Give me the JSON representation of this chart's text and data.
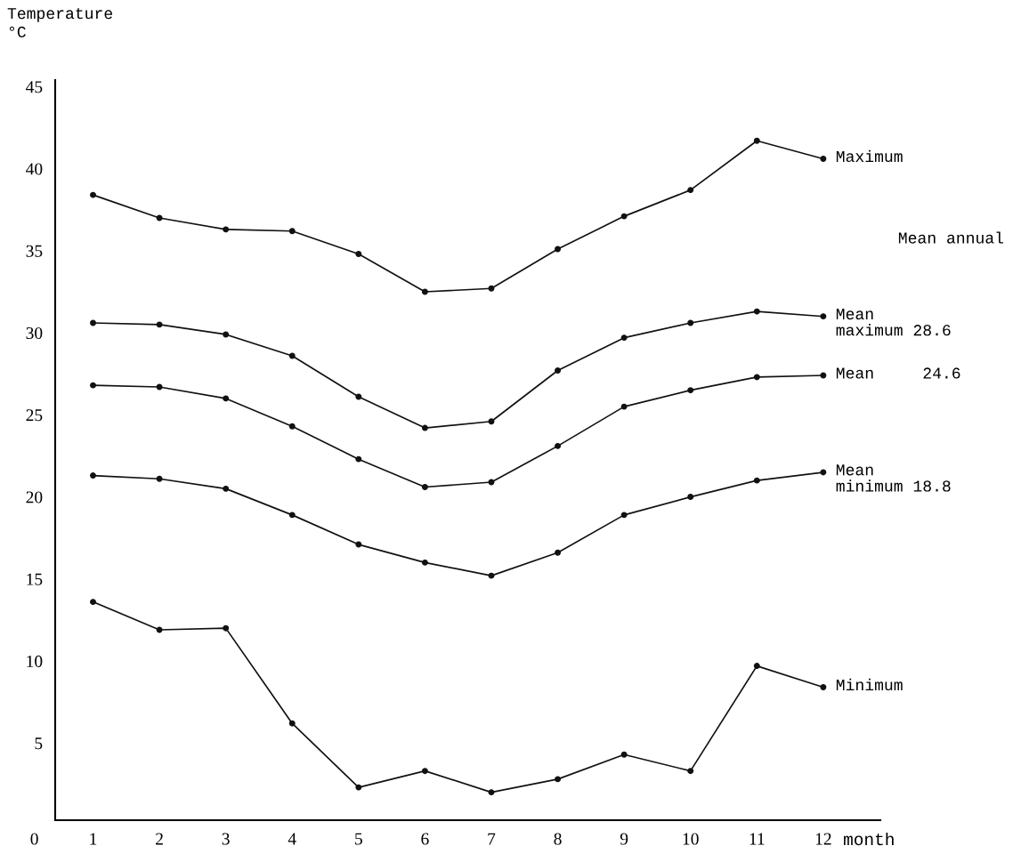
{
  "chart_data": {
    "type": "line",
    "ylabel": "Temperature\n°C",
    "xlabel": "month",
    "x": [
      1,
      2,
      3,
      4,
      5,
      6,
      7,
      8,
      9,
      10,
      11,
      12
    ],
    "xlim": [
      0.43,
      12.86
    ],
    "xticks": [
      1,
      2,
      3,
      4,
      5,
      6,
      7,
      8,
      9,
      10,
      11,
      12
    ],
    "ylim": [
      0.3,
      45.4
    ],
    "yticks": [
      5,
      10,
      15,
      20,
      25,
      30,
      35,
      40,
      45
    ],
    "marker": "circle",
    "line_style": "solid",
    "grid": false,
    "legend": false,
    "annotations": [
      "Mean annual",
      "0"
    ],
    "series": [
      {
        "name": "Maximum",
        "color": "#111111",
        "values": [
          38.4,
          37.0,
          36.3,
          36.2,
          34.8,
          32.5,
          32.7,
          35.1,
          37.1,
          38.7,
          41.7,
          40.6
        ]
      },
      {
        "name": "Mean\nmaximum 28.6",
        "color": "#111111",
        "values": [
          30.6,
          30.5,
          29.9,
          28.6,
          26.1,
          24.2,
          24.6,
          27.7,
          29.7,
          30.6,
          31.3,
          31.0
        ]
      },
      {
        "name": "Mean     24.6",
        "color": "#111111",
        "values": [
          26.8,
          26.7,
          26.0,
          24.3,
          22.3,
          20.6,
          20.9,
          23.1,
          25.5,
          26.5,
          27.3,
          27.4
        ]
      },
      {
        "name": "Mean\nminimum 18.8",
        "color": "#111111",
        "values": [
          21.3,
          21.1,
          20.5,
          18.9,
          17.1,
          16.0,
          15.2,
          16.6,
          18.9,
          20.0,
          21.0,
          21.5
        ]
      },
      {
        "name": "Minimum",
        "color": "#111111",
        "values": [
          13.6,
          11.9,
          12.0,
          6.2,
          2.3,
          3.3,
          2.0,
          2.8,
          4.3,
          3.3,
          9.7,
          8.4
        ]
      }
    ]
  }
}
